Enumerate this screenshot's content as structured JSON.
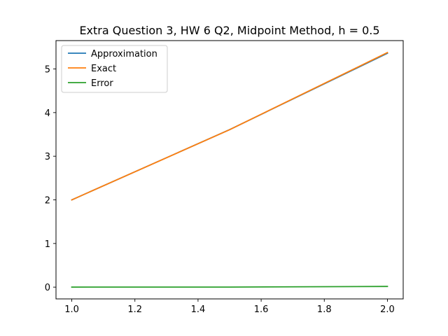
{
  "chart_data": {
    "type": "line",
    "title": "Extra Question 3, HW 6 Q2, Midpoint Method, h = 0.5",
    "xlabel": "",
    "ylabel": "",
    "xlim": [
      0.95,
      2.05
    ],
    "ylim": [
      -0.27,
      5.65
    ],
    "xticks": [
      1.0,
      1.2,
      1.4,
      1.6,
      1.8,
      2.0
    ],
    "xtick_labels": [
      "1.0",
      "1.2",
      "1.4",
      "1.6",
      "1.8",
      "2.0"
    ],
    "yticks": [
      0,
      1,
      2,
      3,
      4,
      5
    ],
    "ytick_labels": [
      "0",
      "1",
      "2",
      "3",
      "4",
      "5"
    ],
    "grid": false,
    "legend_position": "top-left",
    "x": [
      1.0,
      1.5,
      2.0
    ],
    "series": [
      {
        "name": "Approximation",
        "color": "#1f77b4",
        "values": [
          2.0,
          3.6094,
          5.3594
        ]
      },
      {
        "name": "Exact",
        "color": "#ff7f0e",
        "values": [
          2.0,
          3.6082,
          5.3753
        ]
      },
      {
        "name": "Error",
        "color": "#2ca02c",
        "values": [
          0.0,
          0.0012,
          0.0159
        ]
      }
    ]
  }
}
